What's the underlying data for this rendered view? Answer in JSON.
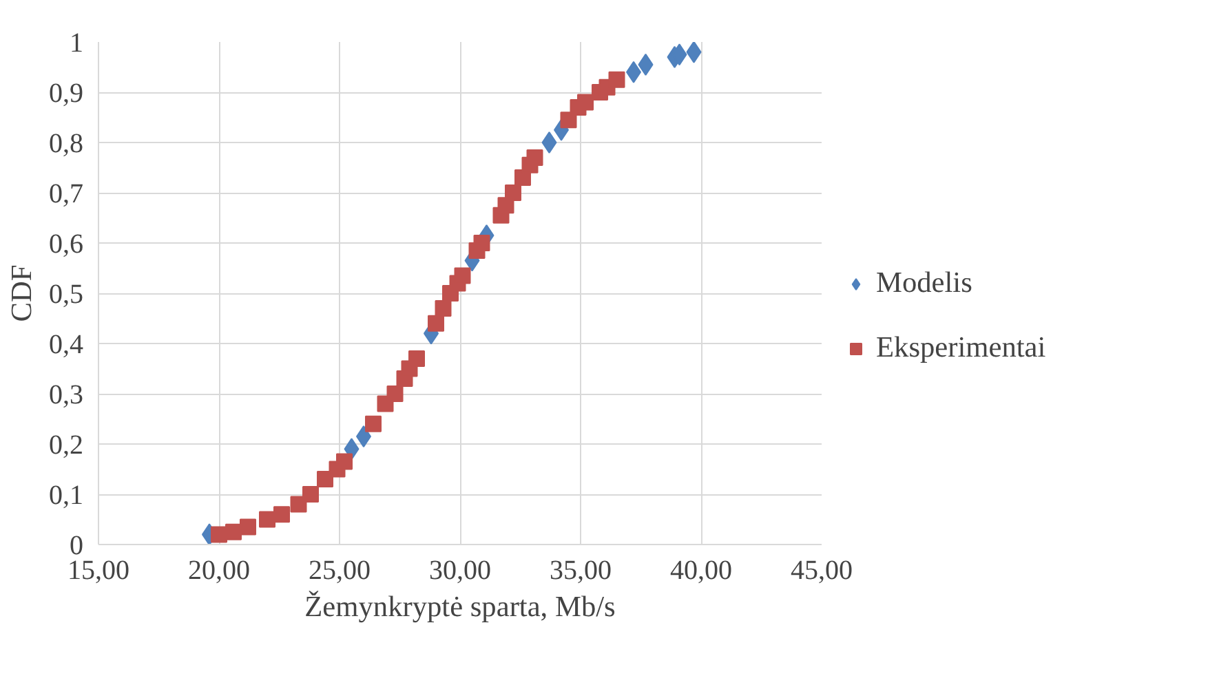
{
  "chart_data": {
    "type": "scatter",
    "xlabel": "Žemynkryptė sparta, Mb/s",
    "ylabel": "CDF",
    "xlim": [
      15,
      45
    ],
    "ylim": [
      0,
      1
    ],
    "xticks": [
      {
        "value": 15,
        "label": "15,00"
      },
      {
        "value": 20,
        "label": "20,00"
      },
      {
        "value": 25,
        "label": "25,00"
      },
      {
        "value": 30,
        "label": "30,00"
      },
      {
        "value": 35,
        "label": "35,00"
      },
      {
        "value": 40,
        "label": "40,00"
      },
      {
        "value": 45,
        "label": "45,00"
      }
    ],
    "yticks": [
      0,
      {
        "value": 0.1,
        "label": "0,1"
      },
      {
        "value": 0.2,
        "label": "0,2"
      },
      {
        "value": 0.3,
        "label": "0,3"
      },
      {
        "value": 0.4,
        "label": "0,4"
      },
      {
        "value": 0.5,
        "label": "0,5"
      },
      {
        "value": 0.6,
        "label": "0,6"
      },
      {
        "value": 0.7,
        "label": "0,7"
      },
      {
        "value": 0.8,
        "label": "0,8"
      },
      {
        "value": 0.9,
        "label": "0,9"
      },
      1
    ],
    "grid": true,
    "legend": "right",
    "series": [
      {
        "name": "Modelis",
        "color": "#4f81bd",
        "marker": "diamond",
        "x": [
          19.6,
          25.5,
          26.0,
          26.8,
          27.6,
          28.8,
          30.5,
          31.1,
          33.7,
          34.2,
          36.8,
          37.2,
          37.7,
          38.9,
          39.1,
          39.7
        ],
        "values": [
          0.02,
          0.19,
          0.215,
          null,
          null,
          0.42,
          0.565,
          0.615,
          0.8,
          0.825,
          null,
          0.94,
          0.955,
          0.97,
          0.975,
          0.98
        ]
      },
      {
        "name": "Eksperimentai",
        "color": "#c0504d",
        "marker": "square",
        "x": [
          20.0,
          20.6,
          21.2,
          22.0,
          22.6,
          23.3,
          23.8,
          24.4,
          24.9,
          25.2,
          26.4,
          26.9,
          27.3,
          27.7,
          27.9,
          28.2,
          29.0,
          29.3,
          29.6,
          29.9,
          30.1,
          30.7,
          30.9,
          31.7,
          31.9,
          32.2,
          32.6,
          32.9,
          33.1,
          34.5,
          34.9,
          35.2,
          35.8,
          36.1,
          36.5
        ],
        "values": [
          0.02,
          0.025,
          0.035,
          0.05,
          0.06,
          0.08,
          0.1,
          0.13,
          0.15,
          0.165,
          0.24,
          0.28,
          0.3,
          0.33,
          0.35,
          0.37,
          0.44,
          0.47,
          0.5,
          0.52,
          0.535,
          0.585,
          0.6,
          0.655,
          0.675,
          0.7,
          0.73,
          0.755,
          0.77,
          0.845,
          0.87,
          0.88,
          0.9,
          0.91,
          0.925
        ]
      }
    ]
  }
}
